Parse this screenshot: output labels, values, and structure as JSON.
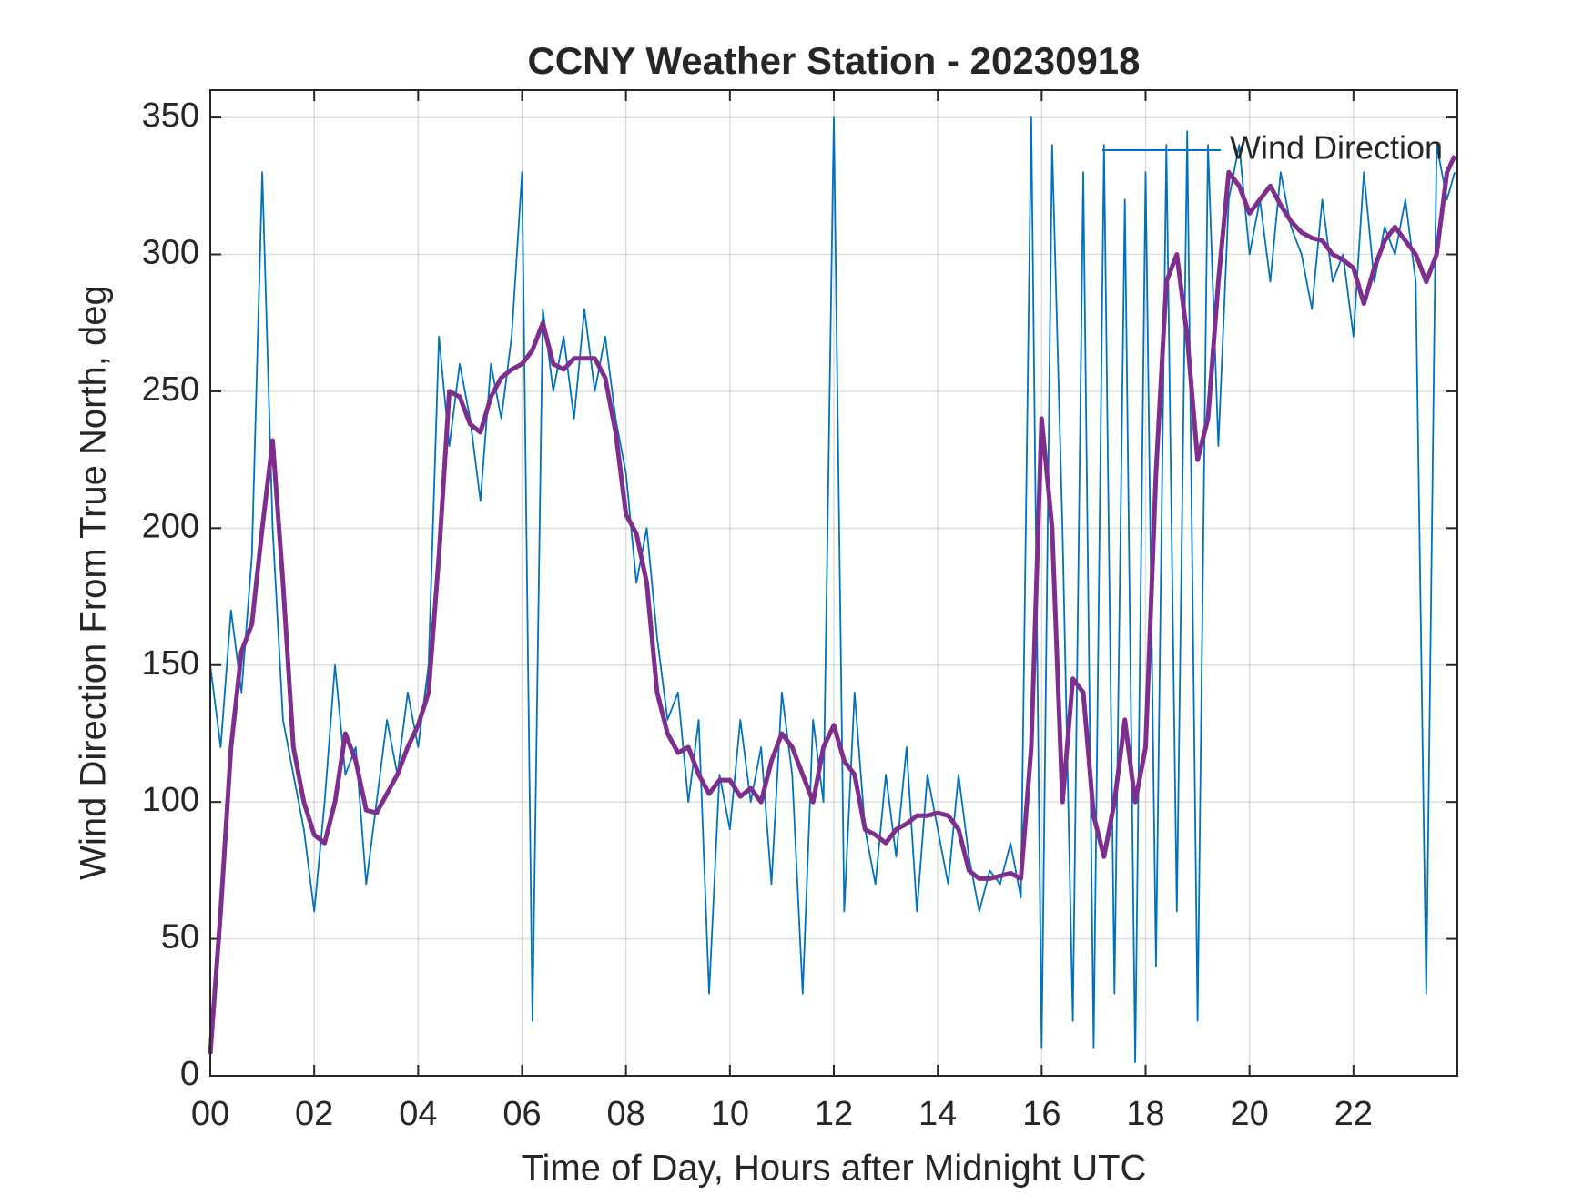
{
  "chart_data": {
    "type": "line",
    "title": "CCNY Weather Station - 20230918",
    "xlabel": "Time of Day, Hours after Midnight UTC",
    "ylabel": "Wind Direction From True North, deg",
    "x": [
      0,
      0.2,
      0.4,
      0.6,
      0.8,
      1.0,
      1.2,
      1.4,
      1.6,
      1.8,
      2.0,
      2.2,
      2.4,
      2.6,
      2.8,
      3.0,
      3.2,
      3.4,
      3.6,
      3.8,
      4.0,
      4.2,
      4.4,
      4.6,
      4.8,
      5.0,
      5.2,
      5.4,
      5.6,
      5.8,
      6.0,
      6.2,
      6.4,
      6.6,
      6.8,
      7.0,
      7.2,
      7.4,
      7.6,
      7.8,
      8.0,
      8.2,
      8.4,
      8.6,
      8.8,
      9.0,
      9.2,
      9.4,
      9.6,
      9.8,
      10.0,
      10.2,
      10.4,
      10.6,
      10.8,
      11.0,
      11.2,
      11.4,
      11.6,
      11.8,
      12.0,
      12.2,
      12.4,
      12.6,
      12.8,
      13.0,
      13.2,
      13.4,
      13.6,
      13.8,
      14.0,
      14.2,
      14.4,
      14.6,
      14.8,
      15.0,
      15.2,
      15.4,
      15.6,
      15.8,
      16.0,
      16.2,
      16.4,
      16.6,
      16.8,
      17.0,
      17.2,
      17.4,
      17.6,
      17.8,
      18.0,
      18.2,
      18.4,
      18.6,
      18.8,
      19.0,
      19.2,
      19.4,
      19.6,
      19.8,
      20.0,
      20.2,
      20.4,
      20.6,
      20.8,
      21.0,
      21.2,
      21.4,
      21.6,
      21.8,
      22.0,
      22.2,
      22.4,
      22.6,
      22.8,
      23.0,
      23.2,
      23.4,
      23.6,
      23.8,
      23.95
    ],
    "series": [
      {
        "name": "Wind Direction",
        "color": "#0072bd",
        "values": [
          150,
          120,
          170,
          140,
          190,
          330,
          200,
          130,
          110,
          90,
          60,
          100,
          150,
          110,
          120,
          70,
          100,
          130,
          110,
          140,
          120,
          150,
          270,
          230,
          260,
          240,
          210,
          260,
          240,
          270,
          330,
          20,
          280,
          250,
          270,
          240,
          280,
          250,
          270,
          240,
          220,
          180,
          200,
          160,
          130,
          140,
          100,
          130,
          30,
          110,
          90,
          130,
          100,
          120,
          70,
          140,
          110,
          30,
          130,
          100,
          350,
          60,
          140,
          90,
          70,
          110,
          80,
          120,
          60,
          110,
          90,
          70,
          110,
          80,
          60,
          75,
          70,
          85,
          65,
          350,
          10,
          340,
          200,
          20,
          330,
          10,
          340,
          30,
          320,
          5,
          330,
          40,
          340,
          60,
          345,
          20,
          340,
          230,
          320,
          340,
          300,
          320,
          290,
          330,
          310,
          300,
          280,
          320,
          290,
          300,
          270,
          330,
          290,
          310,
          300,
          320,
          290,
          30,
          340,
          320,
          330
        ]
      },
      {
        "color": "#7e2f8e",
        "values": [
          8,
          60,
          120,
          155,
          165,
          200,
          232,
          180,
          120,
          100,
          88,
          85,
          100,
          125,
          115,
          97,
          96,
          103,
          110,
          120,
          128,
          140,
          190,
          250,
          248,
          238,
          235,
          248,
          255,
          258,
          260,
          265,
          275,
          260,
          258,
          262,
          262,
          262,
          255,
          235,
          205,
          198,
          180,
          140,
          125,
          118,
          120,
          110,
          103,
          108,
          108,
          102,
          105,
          100,
          115,
          125,
          120,
          110,
          100,
          120,
          128,
          115,
          110,
          90,
          88,
          85,
          90,
          92,
          95,
          95,
          96,
          95,
          90,
          75,
          72,
          72,
          73,
          74,
          72,
          120,
          240,
          200,
          100,
          145,
          140,
          95,
          80,
          100,
          130,
          100,
          120,
          220,
          290,
          300,
          270,
          225,
          240,
          290,
          330,
          325,
          315,
          320,
          325,
          318,
          312,
          308,
          306,
          305,
          300,
          298,
          295,
          282,
          295,
          305,
          310,
          305,
          300,
          290,
          300,
          330,
          336
        ]
      }
    ],
    "xlim": [
      0,
      24
    ],
    "xticks": [
      {
        "value": 0,
        "label": "00"
      },
      {
        "value": 2,
        "label": "02"
      },
      {
        "value": 4,
        "label": "04"
      },
      {
        "value": 6,
        "label": "06"
      },
      {
        "value": 8,
        "label": "08"
      },
      10,
      12,
      14,
      16,
      18,
      20,
      22
    ],
    "ylim": [
      0,
      360
    ],
    "yticks": [
      0,
      50,
      100,
      150,
      200,
      250,
      300,
      350
    ],
    "grid": true,
    "legend": "northeast"
  }
}
